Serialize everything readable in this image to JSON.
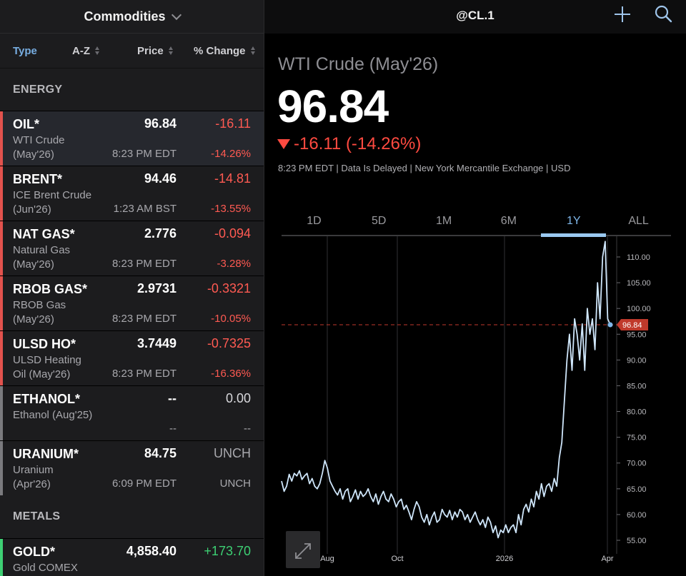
{
  "left_panel": {
    "title": "Commodities",
    "columns": {
      "type": "Type",
      "az": "A-Z",
      "price": "Price",
      "change": "% Change"
    },
    "sections": {
      "energy": "ENERGY",
      "metals": "METALS"
    },
    "rows": [
      {
        "symbol": "OIL*",
        "name": "WTI Crude",
        "contract": "(May'26)",
        "price": "96.84",
        "time": "8:23 PM EDT",
        "change": "-16.11",
        "pct": "-14.26%"
      },
      {
        "symbol": "BRENT*",
        "name": "ICE Brent Crude",
        "contract": "(Jun'26)",
        "price": "94.46",
        "time": "1:23 AM BST",
        "change": "-14.81",
        "pct": "-13.55%"
      },
      {
        "symbol": "NAT GAS*",
        "name": "Natural Gas",
        "contract": "(May'26)",
        "price": "2.776",
        "time": "8:23 PM EDT",
        "change": "-0.094",
        "pct": "-3.28%"
      },
      {
        "symbol": "RBOB GAS*",
        "name": "RBOB Gas",
        "contract": "(May'26)",
        "price": "2.9731",
        "time": "8:23 PM EDT",
        "change": "-0.3321",
        "pct": "-10.05%"
      },
      {
        "symbol": "ULSD HO*",
        "name": "ULSD Heating",
        "contract": "Oil (May'26)",
        "price": "3.7449",
        "time": "8:23 PM EDT",
        "change": "-0.7325",
        "pct": "-16.36%"
      },
      {
        "symbol": "ETHANOL*",
        "name": "Ethanol (Aug'25)",
        "contract": "",
        "price": "--",
        "time": "--",
        "change": "0.00",
        "pct": "--"
      },
      {
        "symbol": "URANIUM*",
        "name": "Uranium",
        "contract": "(Apr'26)",
        "price": "84.75",
        "time": "6:09 PM EDT",
        "change": "UNCH",
        "pct": "UNCH"
      },
      {
        "symbol": "GOLD*",
        "name": "Gold COMEX",
        "contract": "",
        "price": "4,858.40",
        "time": "",
        "change": "+173.70",
        "pct": ""
      }
    ]
  },
  "right_panel": {
    "symbol": "@CL.1",
    "name": "WTI Crude (May'26)",
    "price": "96.84",
    "change": "-16.11 (-14.26%)",
    "meta": "8:23 PM EDT | Data Is Delayed | New York Mercantile Exchange | USD",
    "ranges": [
      "1D",
      "5D",
      "1M",
      "6M",
      "1Y",
      "ALL"
    ],
    "active_range": "1Y"
  },
  "colors": {
    "down": "#ff4a40",
    "up": "#3dcf73",
    "accent": "#7fb7ea",
    "line": "#cfe6fb"
  },
  "chart_data": {
    "type": "line",
    "x_tick_labels": [
      "Aug",
      "Oct",
      "2026",
      "Apr"
    ],
    "y_tick_labels": [
      "55.00",
      "60.00",
      "65.00",
      "70.00",
      "75.00",
      "80.00",
      "85.00",
      "90.00",
      "95.00",
      "100.00",
      "105.00",
      "110.00"
    ],
    "ylim": [
      53,
      113
    ],
    "last_value": "96.84",
    "series": [
      {
        "values": [
          66.5,
          64.5,
          65.5,
          67.8,
          66.5,
          68.0,
          67.5,
          68.5,
          66.8,
          67.5,
          68.0,
          66.0,
          67.0,
          65.5,
          65.0,
          66.0,
          68.0,
          70.5,
          69.0,
          66.5,
          65.5,
          64.5,
          63.8,
          65.0,
          63.0,
          64.5,
          65.0,
          62.5,
          63.5,
          64.8,
          63.0,
          64.5,
          63.5,
          64.0,
          65.0,
          63.5,
          62.5,
          64.0,
          62.0,
          63.5,
          64.5,
          63.0,
          62.5,
          64.0,
          63.0,
          61.5,
          62.5,
          63.0,
          61.0,
          61.8,
          60.5,
          59.0,
          61.0,
          62.5,
          61.5,
          59.5,
          58.5,
          60.0,
          58.0,
          59.5,
          60.5,
          58.5,
          59.0,
          61.0,
          60.0,
          59.5,
          60.8,
          59.0,
          60.5,
          59.5,
          61.0,
          60.5,
          59.0,
          60.0,
          58.5,
          59.5,
          60.5,
          59.0,
          58.0,
          59.0,
          57.5,
          59.5,
          58.5,
          56.5,
          57.8,
          55.5,
          57.0,
          56.5,
          58.0,
          56.5,
          57.5,
          58.0,
          56.5,
          60.0,
          58.0,
          61.0,
          62.0,
          60.5,
          63.0,
          61.5,
          64.5,
          63.0,
          66.0,
          63.5,
          65.5,
          66.0,
          64.5,
          67.0,
          65.5,
          71.0,
          74.0,
          82.0,
          90.0,
          95.0,
          88.0,
          98.0,
          95.0,
          90.0,
          97.0,
          88.0,
          100.0,
          95.0,
          98.0,
          92.0,
          105.0,
          98.0,
          110.0,
          113.0,
          98.0,
          96.84
        ]
      }
    ]
  }
}
